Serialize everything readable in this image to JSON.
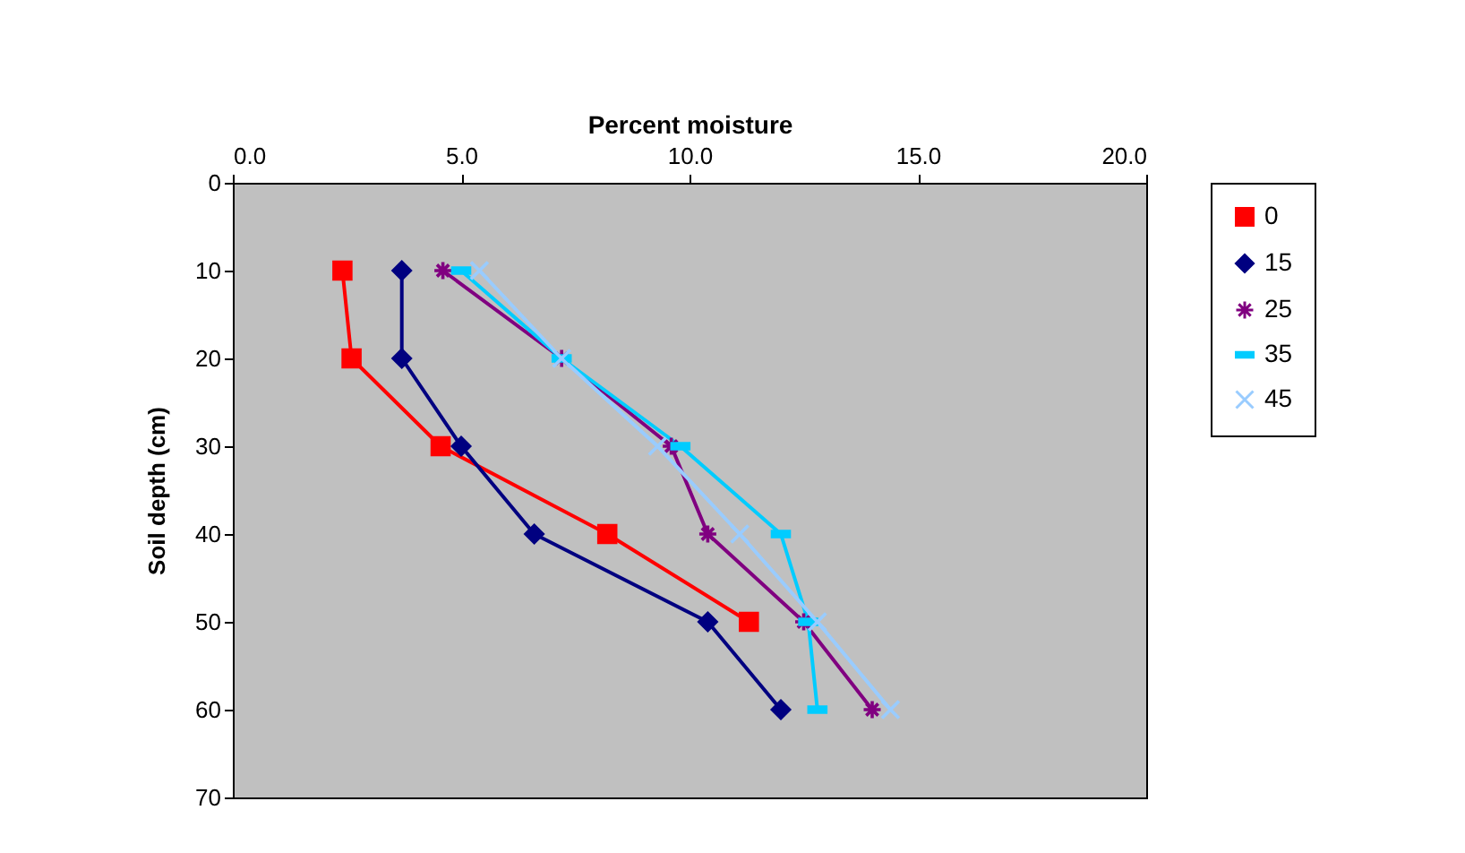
{
  "chart_data": {
    "type": "line",
    "xlabel": "Percent moisture",
    "ylabel": "Soil depth (cm)",
    "xlim": [
      0,
      20
    ],
    "xticks": [
      {
        "value": 0,
        "label": "0.0"
      },
      {
        "value": 5,
        "label": "5.0"
      },
      {
        "value": 10,
        "label": "10.0"
      },
      {
        "value": 15,
        "label": "15.0"
      },
      {
        "value": 20,
        "label": "20.0"
      }
    ],
    "ylim": [
      70,
      0
    ],
    "yticks": [
      0,
      10,
      20,
      30,
      40,
      50,
      60,
      70
    ],
    "grid": false,
    "legend": "right",
    "series": [
      {
        "name": "0",
        "color": "#ff0000",
        "marker": "square",
        "x": [
          2.4,
          2.6,
          4.55,
          8.2,
          11.3
        ],
        "values": [
          10,
          20,
          30,
          40,
          50
        ]
      },
      {
        "name": "15",
        "color": "#000080",
        "marker": "diamond",
        "x": [
          3.7,
          3.7,
          5.0,
          6.6,
          10.4,
          12.0
        ],
        "values": [
          10,
          20,
          30,
          40,
          50,
          60
        ]
      },
      {
        "name": "25",
        "color": "#800080",
        "marker": "cross",
        "x": [
          4.6,
          7.2,
          9.6,
          10.4,
          12.5,
          14.0
        ],
        "values": [
          10,
          20,
          30,
          40,
          50,
          60
        ]
      },
      {
        "name": "35",
        "color": "#00ccff",
        "marker": "square",
        "x": [
          5.0,
          7.2,
          9.8,
          12.0,
          12.6,
          12.8
        ],
        "values": [
          10,
          20,
          30,
          40,
          50,
          60
        ]
      },
      {
        "name": "45",
        "color": "#99ccff",
        "marker": "cross",
        "x": [
          5.4,
          7.2,
          9.3,
          11.1,
          12.8,
          14.4
        ],
        "values": [
          10,
          20,
          30,
          40,
          50,
          60
        ]
      }
    ]
  }
}
